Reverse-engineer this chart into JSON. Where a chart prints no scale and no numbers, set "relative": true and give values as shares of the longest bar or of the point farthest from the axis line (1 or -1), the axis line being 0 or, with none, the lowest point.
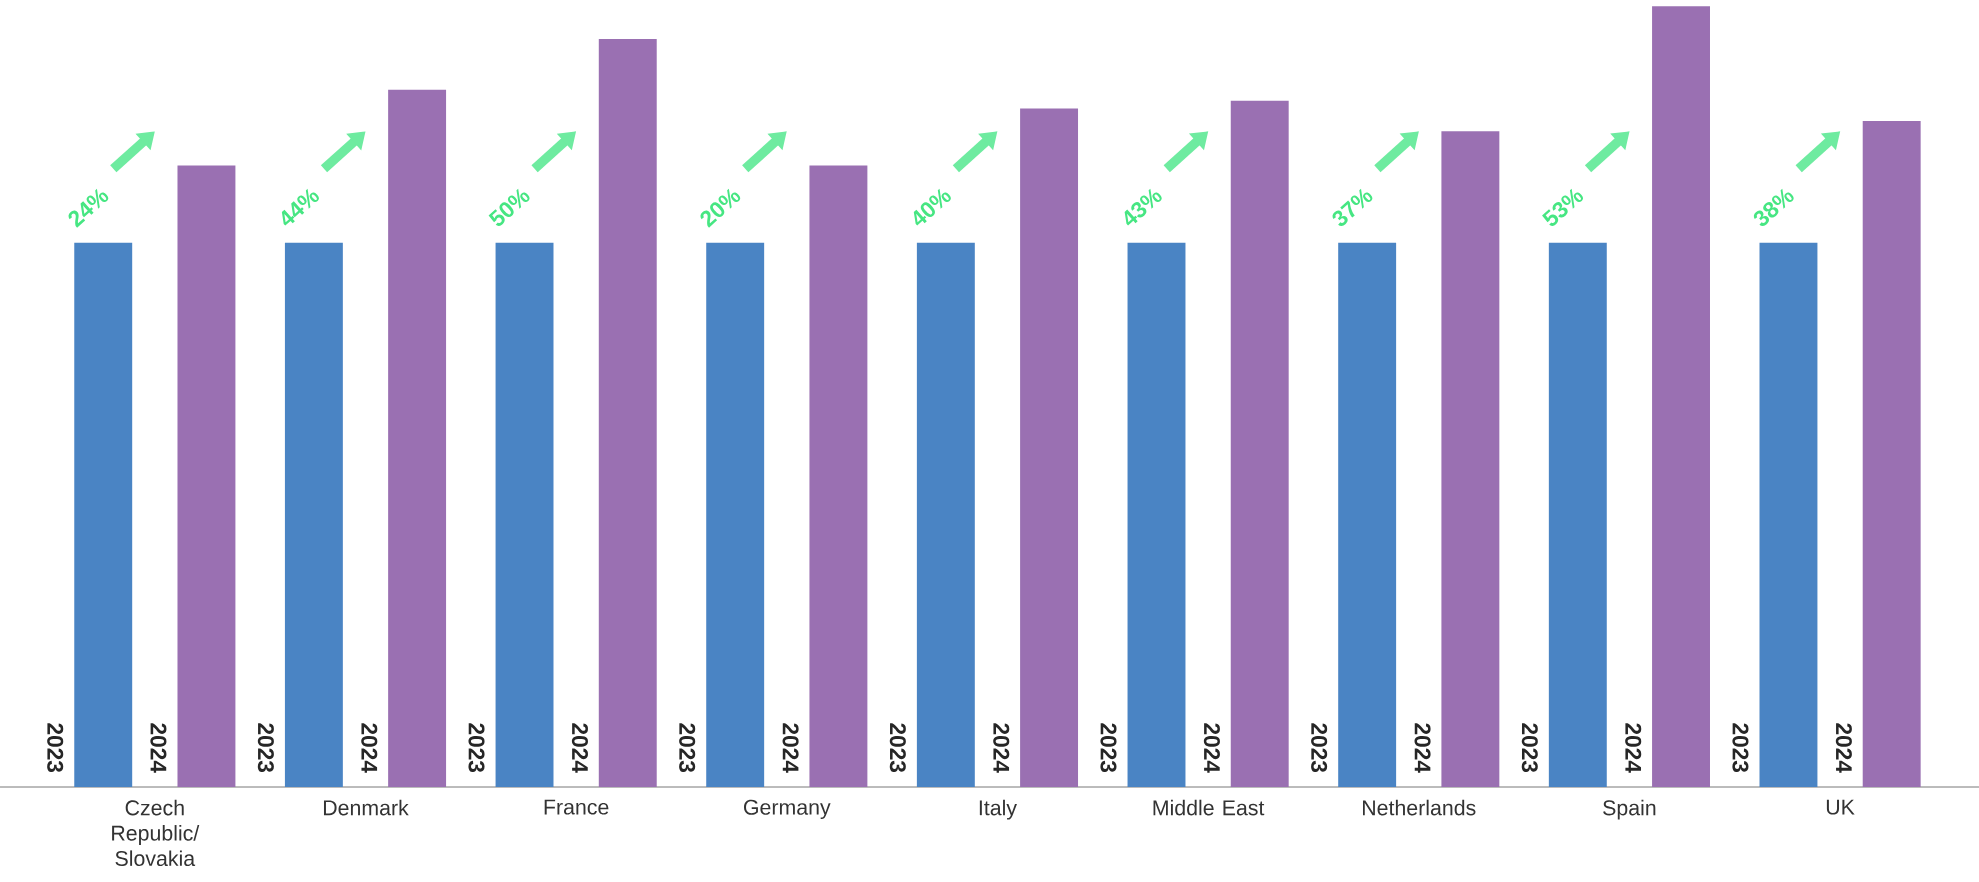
{
  "chart_data": {
    "type": "bar",
    "relative": true,
    "categories": [
      "Czech Republic/ Slovakia",
      "Denmark",
      "France",
      "Germany",
      "Italy",
      "Middle East",
      "Netherlands",
      "Spain",
      "UK"
    ],
    "series": [
      {
        "name": "2023",
        "color": "#4a84c4",
        "values": [
          0.697,
          0.697,
          0.697,
          0.697,
          0.697,
          0.697,
          0.697,
          0.697,
          0.697
        ]
      },
      {
        "name": "2024",
        "color": "#9a70b2",
        "values": [
          0.796,
          0.893,
          0.958,
          0.796,
          0.869,
          0.879,
          0.84,
          1,
          0.853
        ]
      }
    ],
    "annotations": [
      "24%",
      "44%",
      "50%",
      "20%",
      "40%",
      "43%",
      "37%",
      "53%",
      "38%"
    ]
  }
}
